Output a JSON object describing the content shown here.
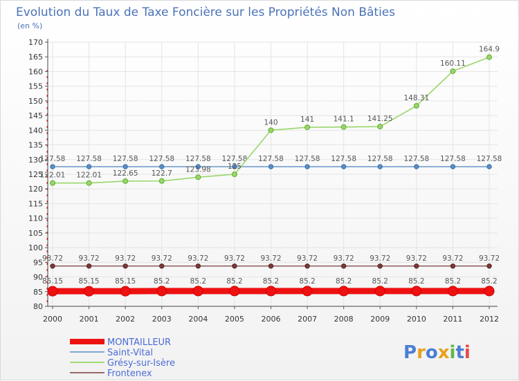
{
  "chart_data": {
    "type": "line",
    "title": "Evolution du Taux de Taxe Foncière sur les Propriétés Non Bâties",
    "subtitle": "(en %)",
    "x": [
      "2000",
      "2001",
      "2002",
      "2003",
      "2004",
      "2005",
      "2006",
      "2007",
      "2008",
      "2009",
      "2010",
      "2011",
      "2012"
    ],
    "ylim": [
      80,
      170
    ],
    "yticks": [
      "80",
      "85",
      "90",
      "95",
      "100",
      "105",
      "110",
      "115",
      "120",
      "125",
      "130",
      "135",
      "140",
      "145",
      "150",
      "155",
      "160",
      "165",
      "170"
    ],
    "series": [
      {
        "name": "MONTAILLEUR",
        "color": "#ee1111",
        "values": [
          85.15,
          85.15,
          85.15,
          85.2,
          85.2,
          85.2,
          85.2,
          85.2,
          85.2,
          85.2,
          85.2,
          85.2,
          85.2
        ],
        "labels": [
          "85.15",
          "85.15",
          "85.15",
          "85.2",
          "85.2",
          "85.2",
          "85.2",
          "85.2",
          "85.2",
          "85.2",
          "85.2",
          "85.2",
          "85.2"
        ]
      },
      {
        "name": "Saint-Vital",
        "color": "#5b8ec4",
        "values": [
          127.58,
          127.58,
          127.58,
          127.58,
          127.58,
          127.58,
          127.58,
          127.58,
          127.58,
          127.58,
          127.58,
          127.58,
          127.58
        ],
        "labels": [
          "127.58",
          "127.58",
          "127.58",
          "127.58",
          "127.58",
          "127.58",
          "127.58",
          "127.58",
          "127.58",
          "127.58",
          "127.58",
          "127.58",
          "127.58"
        ]
      },
      {
        "name": "Grésy-sur-Isère",
        "color": "#99d66a",
        "values": [
          122.01,
          122.01,
          122.65,
          122.7,
          123.98,
          125,
          140,
          141,
          141.1,
          141.25,
          148.31,
          160.11,
          164.9
        ],
        "labels": [
          "122.01",
          "122.01",
          "122.65",
          "122.7",
          "123.98",
          "125",
          "140",
          "141",
          "141.1",
          "141.25",
          "148.31",
          "160.11",
          "164.9"
        ]
      },
      {
        "name": "Frontenex",
        "color": "#7a3a3a",
        "values": [
          93.72,
          93.72,
          93.72,
          93.72,
          93.72,
          93.72,
          93.72,
          93.72,
          93.72,
          93.72,
          93.72,
          93.72,
          93.72
        ],
        "labels": [
          "93.72",
          "93.72",
          "93.72",
          "93.72",
          "93.72",
          "93.72",
          "93.72",
          "93.72",
          "93.72",
          "93.72",
          "93.72",
          "93.72",
          "93.72"
        ]
      }
    ],
    "legend": [
      "MONTAILLEUR",
      "Saint-Vital",
      "Grésy-sur-Isère",
      "Frontenex"
    ]
  },
  "logo": {
    "text": "Proxiti",
    "letters": [
      "P",
      "r",
      "o",
      "x",
      "i",
      "t",
      "i"
    ]
  },
  "colors": {
    "logo": [
      "#4a7fd4",
      "#e8a020",
      "#4a7fd4",
      "#e8a020",
      "#5fb84a",
      "#4a7fd4",
      "#e84a4a"
    ]
  }
}
